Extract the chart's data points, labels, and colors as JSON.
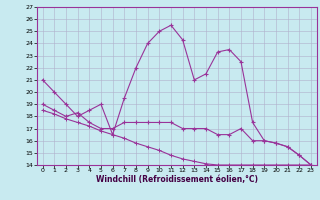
{
  "xlabel": "Windchill (Refroidissement éolien,°C)",
  "bg_color": "#c8eaf0",
  "grid_color": "#b0b0cc",
  "line_color": "#993399",
  "spine_color": "#993399",
  "xlim": [
    -0.5,
    23.5
  ],
  "ylim": [
    14,
    27
  ],
  "xticks": [
    0,
    1,
    2,
    3,
    4,
    5,
    6,
    7,
    8,
    9,
    10,
    11,
    12,
    13,
    14,
    15,
    16,
    17,
    18,
    19,
    20,
    21,
    22,
    23
  ],
  "yticks": [
    14,
    15,
    16,
    17,
    18,
    19,
    20,
    21,
    22,
    23,
    24,
    25,
    26,
    27
  ],
  "line1_x": [
    0,
    1,
    2,
    3,
    4,
    5,
    6,
    7,
    8,
    9,
    10,
    11,
    12,
    13,
    14,
    15,
    16,
    17,
    18,
    19,
    20,
    21,
    22,
    23
  ],
  "line1_y": [
    21,
    20,
    19,
    18,
    18.5,
    19,
    16.5,
    19.5,
    22,
    24,
    25,
    25.5,
    24.3,
    21,
    21.5,
    23.3,
    23.5,
    22.5,
    17.5,
    16,
    15.8,
    15.5,
    14.8,
    14
  ],
  "line2_x": [
    0,
    1,
    2,
    3,
    4,
    5,
    6,
    7,
    8,
    9,
    10,
    11,
    12,
    13,
    14,
    15,
    16,
    17,
    18,
    19,
    20,
    21,
    22,
    23
  ],
  "line2_y": [
    19,
    18.5,
    18,
    18.3,
    17.5,
    17,
    17,
    17.5,
    17.5,
    17.5,
    17.5,
    17.5,
    17,
    17,
    17,
    16.5,
    16.5,
    17,
    16,
    16,
    15.8,
    15.5,
    14.8,
    14
  ],
  "line3_x": [
    0,
    1,
    2,
    3,
    4,
    5,
    6,
    7,
    8,
    9,
    10,
    11,
    12,
    13,
    14,
    15,
    16,
    17,
    18,
    19,
    20,
    21,
    22,
    23
  ],
  "line3_y": [
    18.5,
    18.2,
    17.8,
    17.5,
    17.2,
    16.8,
    16.5,
    16.2,
    15.8,
    15.5,
    15.2,
    14.8,
    14.5,
    14.3,
    14.1,
    14.0,
    14.0,
    14.0,
    14.0,
    14.0,
    14.0,
    14.0,
    14.0,
    14.0
  ]
}
